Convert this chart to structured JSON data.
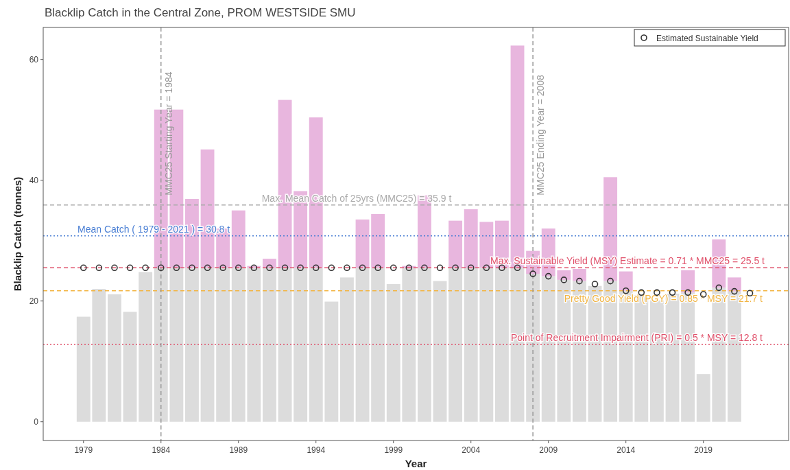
{
  "chart_data": {
    "type": "bar",
    "stacked": true,
    "title": "Blacklip Catch in the Central Zone, PROM WESTSIDE SMU",
    "xlabel": "Year",
    "ylabel": "Blacklip Catch (tonnes)",
    "x": [
      1979,
      1980,
      1981,
      1982,
      1983,
      1984,
      1985,
      1986,
      1987,
      1988,
      1989,
      1990,
      1991,
      1992,
      1993,
      1994,
      1995,
      1996,
      1997,
      1998,
      1999,
      2000,
      2001,
      2002,
      2003,
      2004,
      2005,
      2006,
      2007,
      2008,
      2009,
      2010,
      2011,
      2012,
      2013,
      2014,
      2015,
      2016,
      2017,
      2018,
      2019,
      2020,
      2021
    ],
    "xlim": [
      1976.4,
      2024.5
    ],
    "xticks": [
      1979,
      1984,
      1989,
      1994,
      1999,
      2004,
      2009,
      2014,
      2019
    ],
    "ylim": [
      -3.1,
      65.3
    ],
    "yticks": [
      0,
      20,
      40,
      60
    ],
    "legend": "top right",
    "series": [
      {
        "color": "#dcdcdc",
        "values": [
          17.4,
          22.0,
          21.1,
          18.2,
          24.8,
          25.5,
          25.5,
          25.5,
          25.5,
          25.5,
          25.5,
          25.5,
          25.5,
          25.5,
          25.5,
          25.5,
          19.9,
          23.9,
          25.5,
          25.5,
          22.8,
          25.5,
          25.5,
          23.3,
          25.5,
          25.5,
          25.5,
          25.5,
          25.5,
          24.5,
          24.1,
          23.5,
          23.3,
          22.5,
          23.3,
          21.7,
          21.0,
          20.1,
          21.2,
          21.4,
          7.9,
          22.2,
          21.6
        ]
      },
      {
        "color": "#e8b6de",
        "values": [
          null,
          null,
          null,
          null,
          null,
          26.2,
          26.2,
          11.4,
          19.6,
          6.5,
          9.5,
          0.3,
          1.5,
          27.8,
          12.7,
          24.9,
          null,
          null,
          8.0,
          8.9,
          null,
          0.3,
          12.0,
          null,
          7.8,
          9.7,
          7.6,
          7.8,
          36.8,
          3.8,
          7.9,
          1.6,
          2.0,
          null,
          17.2,
          3.2,
          null,
          null,
          null,
          3.7,
          null,
          8.0,
          2.3
        ]
      },
      {
        "type": "scatter",
        "name": "Estimated Sustainable Yield",
        "color": "#333333",
        "marker": "circle",
        "x": [
          1979,
          1980,
          1981,
          1982,
          1983,
          1984,
          1985,
          1986,
          1987,
          1988,
          1989,
          1990,
          1991,
          1992,
          1993,
          1994,
          1995,
          1996,
          1997,
          1998,
          1999,
          2000,
          2001,
          2002,
          2003,
          2004,
          2005,
          2006,
          2007,
          2008,
          2009,
          2010,
          2011,
          2012,
          2013,
          2014,
          2015,
          2016,
          2017,
          2018,
          2019,
          2020,
          2021,
          2022
        ],
        "values": [
          25.5,
          25.5,
          25.5,
          25.5,
          25.5,
          25.5,
          25.5,
          25.5,
          25.5,
          25.5,
          25.5,
          25.5,
          25.5,
          25.5,
          25.5,
          25.5,
          25.5,
          25.5,
          25.5,
          25.5,
          25.5,
          25.5,
          25.5,
          25.5,
          25.5,
          25.5,
          25.5,
          25.5,
          25.5,
          24.5,
          24.1,
          23.5,
          23.3,
          22.8,
          23.3,
          21.7,
          21.4,
          21.4,
          21.4,
          21.4,
          21.1,
          22.2,
          21.6,
          21.3
        ]
      }
    ],
    "ref_lines": [
      {
        "axis": "y",
        "value": 35.9,
        "label": "Max. Mean Catch of 25yrs (MMC25) = 35.9 t",
        "color": "#aaaaaa",
        "line_style": "dashed"
      },
      {
        "axis": "y",
        "value": 30.8,
        "label": "Mean Catch ( 1979 - 2021 ) = 30.8 t",
        "color": "#4a7fd4",
        "line_style": "dotted"
      },
      {
        "axis": "y",
        "value": 25.5,
        "label": "Max. Sustainable Yield (MSY) Estimate = 0.71 * MMC25 = 25.5 t",
        "color": "#e0506a",
        "line_style": "dashed"
      },
      {
        "axis": "y",
        "value": 21.7,
        "label": "Pretty Good Yield (PGY) = 0.85 * MSY = 21.7 t",
        "color": "#f2b544",
        "line_style": "dashed"
      },
      {
        "axis": "y",
        "value": 12.8,
        "label": "Point of Recruitment Impairment (PRI) = 0.5 * MSY = 12.8 t",
        "color": "#e0506a",
        "line_style": "dotted"
      },
      {
        "axis": "x",
        "value": 1984,
        "label": "MMC25 Starting Year = 1984",
        "color": "#999999",
        "line_style": "dashed"
      },
      {
        "axis": "x",
        "value": 2008,
        "label": "MMC25 Ending Year = 2008",
        "color": "#999999",
        "line_style": "dashed"
      }
    ]
  }
}
